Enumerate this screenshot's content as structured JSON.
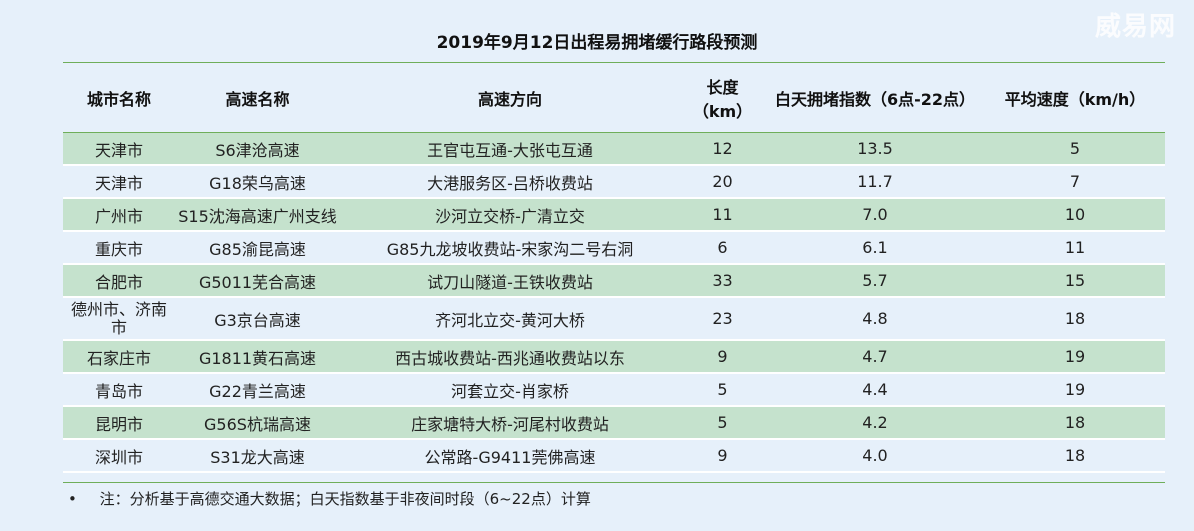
{
  "watermark": "威易网",
  "title": "2019年9月12日出程易拥堵缓行路段预测",
  "headers": [
    "城市名称",
    "高速名称",
    "高速方向",
    "长度（km）",
    "白天拥堵指数（6点-22点）",
    "平均速度（km/h）"
  ],
  "rows": [
    [
      "天津市",
      "S6津沧高速",
      "王官屯互通-大张屯互通",
      "12",
      "13.5",
      "5"
    ],
    [
      "天津市",
      "G18荣乌高速",
      "大港服务区-吕桥收费站",
      "20",
      "11.7",
      "7"
    ],
    [
      "广州市",
      "S15沈海高速广州支线",
      "沙河立交桥-广清立交",
      "11",
      "7.0",
      "10"
    ],
    [
      "重庆市",
      "G85渝昆高速",
      "G85九龙坡收费站-宋家沟二号右洞",
      "6",
      "6.1",
      "11"
    ],
    [
      "合肥市",
      "G5011芜合高速",
      "试刀山隧道-王铁收费站",
      "33",
      "5.7",
      "15"
    ],
    [
      "德州市、济南市",
      "G3京台高速",
      "齐河北立交-黄河大桥",
      "23",
      "4.8",
      "18"
    ],
    [
      "石家庄市",
      "G1811黄石高速",
      "西古城收费站-西兆通收费站以东",
      "9",
      "4.7",
      "19"
    ],
    [
      "青岛市",
      "G22青兰高速",
      "河套立交-肖家桥",
      "5",
      "4.4",
      "19"
    ],
    [
      "昆明市",
      "G56S杭瑞高速",
      "庄家塘特大桥-河尾村收费站",
      "5",
      "4.2",
      "18"
    ],
    [
      "深圳市",
      "S31龙大高速",
      "公常路-G9411莞佛高速",
      "9",
      "4.0",
      "18"
    ]
  ],
  "note_bullet": "•",
  "note": "注：分析基于高德交通大数据；白天指数基于非夜间时段（6~22点）计算",
  "colors": {
    "row_green": "#c5e2cd",
    "background": "#e6f0fa",
    "rule": "#6fae5a"
  }
}
